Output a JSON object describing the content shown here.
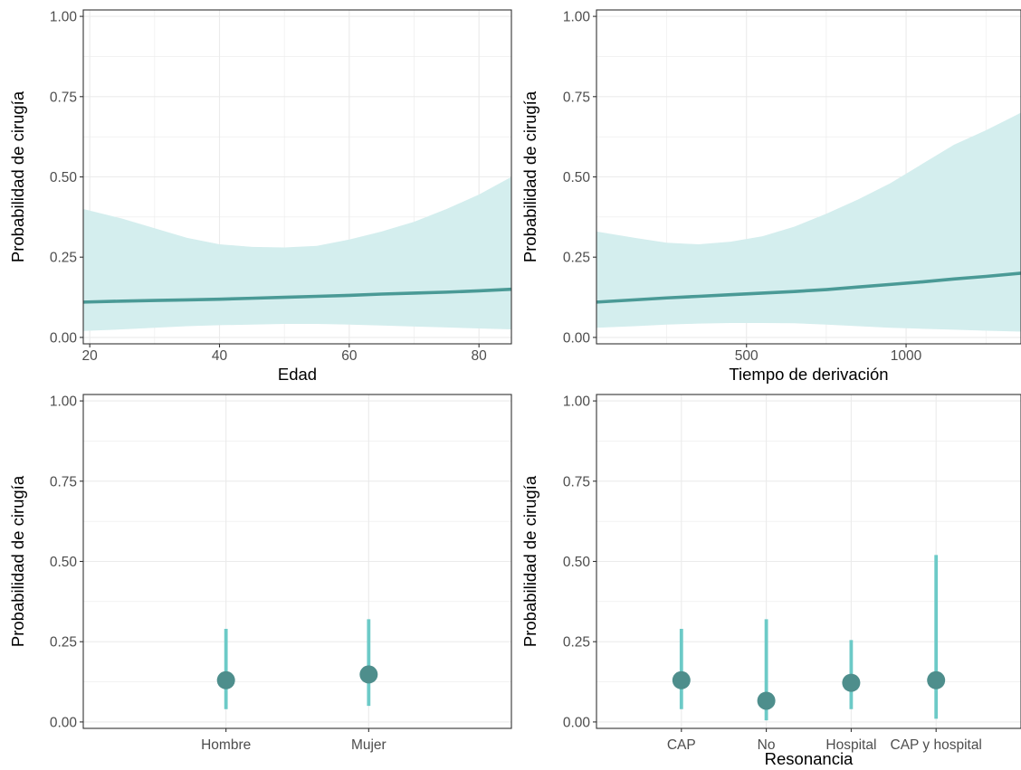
{
  "colors": {
    "line": "#4a9a96",
    "band": "#d4eeee",
    "point": "#4e8e8c",
    "errorbar": "#6ccac7",
    "grid": "#ebebeb",
    "panel_border": "#333333",
    "tick_text": "#4d4d4d"
  },
  "chart_data": [
    {
      "type": "line",
      "subtype": "line-with-confidence-band",
      "xlabel": "Edad",
      "ylabel": "Probabilidad de cirugía",
      "xlim": [
        19,
        85
      ],
      "ylim": [
        -0.02,
        1.02
      ],
      "x_ticks": [
        20,
        40,
        60,
        80
      ],
      "x_tick_labels": [
        "20",
        "40",
        "60",
        "80"
      ],
      "y_ticks": [
        0,
        0.25,
        0.5,
        0.75,
        1
      ],
      "y_tick_labels": [
        "0.00",
        "0.25",
        "0.50",
        "0.75",
        "1.00"
      ],
      "grid": true,
      "x": [
        19,
        25,
        30,
        35,
        40,
        45,
        50,
        55,
        60,
        65,
        70,
        75,
        80,
        85
      ],
      "y": [
        0.11,
        0.113,
        0.115,
        0.117,
        0.119,
        0.122,
        0.125,
        0.128,
        0.131,
        0.135,
        0.138,
        0.141,
        0.145,
        0.15
      ],
      "lower": [
        0.02,
        0.025,
        0.03,
        0.035,
        0.038,
        0.04,
        0.042,
        0.042,
        0.04,
        0.037,
        0.034,
        0.031,
        0.028,
        0.025
      ],
      "upper": [
        0.4,
        0.37,
        0.34,
        0.31,
        0.29,
        0.282,
        0.28,
        0.285,
        0.305,
        0.33,
        0.36,
        0.4,
        0.445,
        0.5
      ]
    },
    {
      "type": "line",
      "subtype": "line-with-confidence-band",
      "xlabel": "Tiempo de derivación",
      "ylabel": "Probabilidad de cirugía",
      "xlim": [
        30,
        1360
      ],
      "ylim": [
        -0.02,
        1.02
      ],
      "x_ticks": [
        500,
        1000
      ],
      "x_tick_labels": [
        "500",
        "1000"
      ],
      "y_ticks": [
        0,
        0.25,
        0.5,
        0.75,
        1
      ],
      "y_tick_labels": [
        "0.00",
        "0.25",
        "0.50",
        "0.75",
        "1.00"
      ],
      "grid": true,
      "x": [
        30,
        150,
        250,
        350,
        450,
        550,
        650,
        750,
        850,
        950,
        1050,
        1150,
        1250,
        1360
      ],
      "y": [
        0.11,
        0.117,
        0.123,
        0.128,
        0.133,
        0.138,
        0.143,
        0.149,
        0.157,
        0.165,
        0.173,
        0.182,
        0.19,
        0.2
      ],
      "lower": [
        0.03,
        0.035,
        0.04,
        0.043,
        0.045,
        0.045,
        0.044,
        0.04,
        0.035,
        0.03,
        0.027,
        0.024,
        0.021,
        0.018
      ],
      "upper": [
        0.33,
        0.31,
        0.295,
        0.29,
        0.298,
        0.315,
        0.345,
        0.385,
        0.43,
        0.48,
        0.54,
        0.6,
        0.645,
        0.7
      ]
    },
    {
      "type": "scatter",
      "subtype": "point-with-errorbars",
      "xlabel": "",
      "ylabel": "Probabilidad de cirugía",
      "ylim": [
        -0.02,
        1.02
      ],
      "y_ticks": [
        0,
        0.25,
        0.5,
        0.75,
        1
      ],
      "y_tick_labels": [
        "0.00",
        "0.25",
        "0.50",
        "0.75",
        "1.00"
      ],
      "grid": true,
      "categories": [
        "Hombre",
        "Mujer"
      ],
      "values": [
        0.13,
        0.148
      ],
      "lower": [
        0.04,
        0.05
      ],
      "upper": [
        0.29,
        0.32
      ]
    },
    {
      "type": "scatter",
      "subtype": "point-with-errorbars",
      "xlabel": "Resonancia",
      "ylabel": "Probabilidad de cirugía",
      "ylim": [
        -0.02,
        1.02
      ],
      "y_ticks": [
        0,
        0.25,
        0.5,
        0.75,
        1
      ],
      "y_tick_labels": [
        "0.00",
        "0.25",
        "0.50",
        "0.75",
        "1.00"
      ],
      "grid": true,
      "categories": [
        "CAP",
        "No",
        "Hospital",
        "CAP y hospital"
      ],
      "values": [
        0.13,
        0.066,
        0.122,
        0.13
      ],
      "lower": [
        0.04,
        0.005,
        0.04,
        0.01
      ],
      "upper": [
        0.29,
        0.32,
        0.255,
        0.52
      ]
    }
  ]
}
